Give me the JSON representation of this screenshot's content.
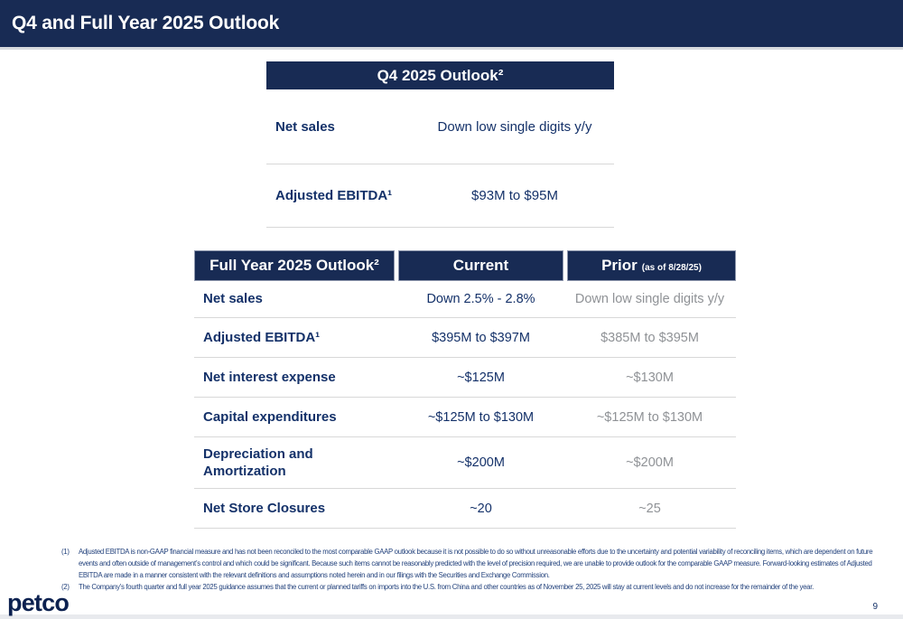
{
  "slide": {
    "title": "Q4 and Full Year 2025 Outlook",
    "logo_text": "petco",
    "page_number": "9"
  },
  "q4_table": {
    "header": "Q4 2025 Outlook²",
    "rows": [
      {
        "label": "Net sales",
        "value": "Down low single digits y/y"
      },
      {
        "label": "Adjusted EBITDA¹",
        "value": "$93M to $95M"
      }
    ]
  },
  "fy_table": {
    "header": "Full Year 2025 Outlook²",
    "col_current": "Current",
    "col_prior": "Prior",
    "col_prior_note": "(as of 8/28/25)",
    "rows": [
      {
        "label": "Net sales",
        "current": "Down 2.5% - 2.8%",
        "prior": "Down low single digits y/y"
      },
      {
        "label": "Adjusted EBITDA¹",
        "current": "$395M to $397M",
        "prior": "$385M to $395M"
      },
      {
        "label": "Net interest expense",
        "current": "~$125M",
        "prior": "~$130M"
      },
      {
        "label": "Capital expenditures",
        "current": "~$125M to $130M",
        "prior": "~$125M to $130M"
      },
      {
        "label": "Depreciation and Amortization",
        "current": "~$200M",
        "prior": "~$200M"
      },
      {
        "label": "Net Store Closures",
        "current": "~20",
        "prior": "~25"
      }
    ]
  },
  "footnotes": [
    {
      "num": "(1)",
      "text": "Adjusted EBITDA is non-GAAP financial measure and has not been reconciled to the most comparable GAAP outlook because it is not possible to do so without unreasonable efforts due to the uncertainty and potential variability of reconciling items, which are dependent on future events and often outside of management’s control and which could be significant. Because such items cannot be reasonably predicted with the level of precision required, we are unable to provide outlook for the comparable GAAP measure. Forward-looking estimates of Adjusted EBITDA are made in a manner consistent with the relevant definitions and assumptions noted herein and in our filings with the Securities and Exchange Commission."
    },
    {
      "num": "(2)",
      "text": "The Company’s fourth quarter and full year 2025 guidance assumes that the current or planned tariffs on imports into the U.S. from China and other countries as of November 25, 2025 will stay at current levels and do not increase for the remainder of the year."
    }
  ],
  "colors": {
    "header_bg": "#182b54",
    "text_navy": "#143169",
    "footnote_navy": "#23427c",
    "prior_gray": "#8f9296",
    "divider": "#d8d8d8",
    "strip_gray": "#e8eaee",
    "logo_navy": "#0c2150"
  }
}
